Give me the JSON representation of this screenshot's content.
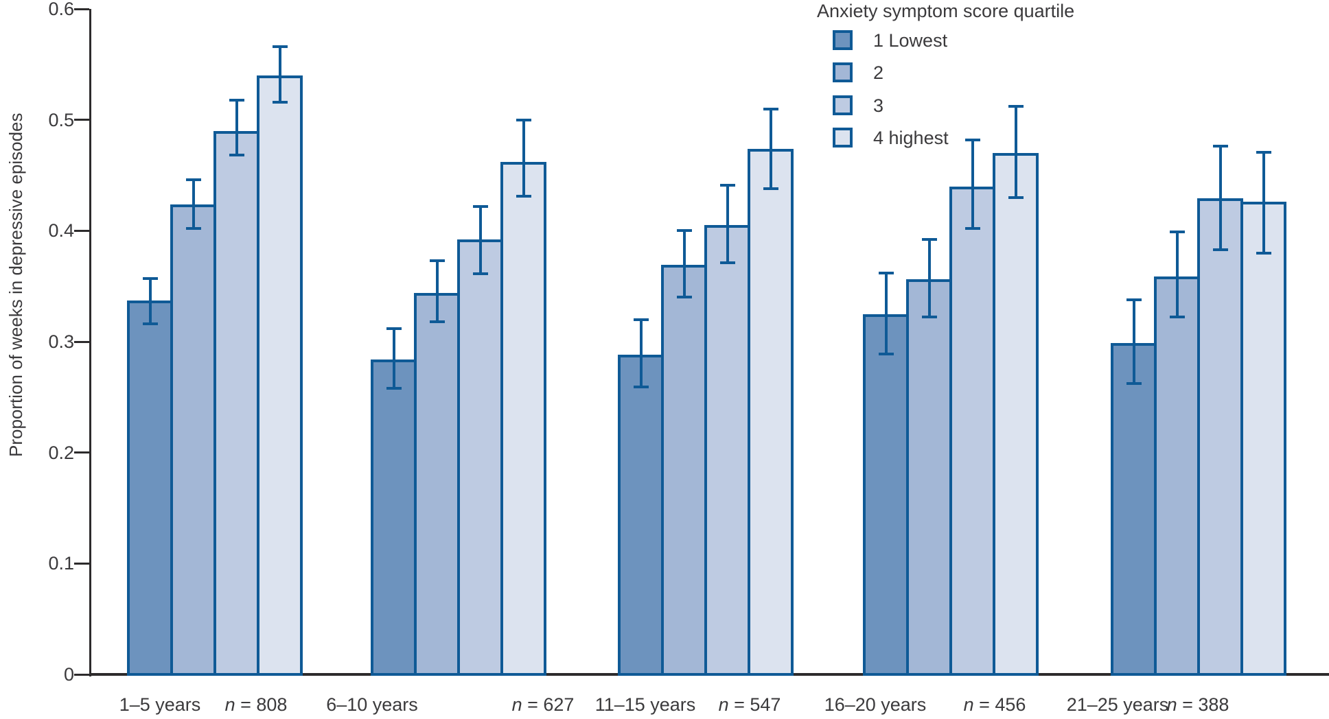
{
  "chart_data": {
    "type": "bar",
    "title": "",
    "xlabel": "",
    "ylabel": "Proportion of weeks in depressive episodes",
    "ylim": [
      0,
      0.6
    ],
    "ytick_labels": [
      "0",
      "0.1",
      "0.2",
      "0.3",
      "0.4",
      "0.5",
      "0.6"
    ],
    "ytick_values": [
      0,
      0.1,
      0.2,
      0.3,
      0.4,
      0.5,
      0.6
    ],
    "grid": false,
    "categories": [
      "1–5 years",
      "6–10 years",
      "11–15 years",
      "16–20 years",
      "21–25 years"
    ],
    "n_symbol": "n",
    "n_values": [
      "808",
      "627",
      "547",
      "456",
      "388"
    ],
    "legend": {
      "title": "Anxiety symptom score quartile",
      "position": "top-right",
      "entries": [
        {
          "label": "1 Lowest",
          "color": "#6d93be"
        },
        {
          "label": "2",
          "color": "#a3b7d6"
        },
        {
          "label": "3",
          "color": "#becbe2"
        },
        {
          "label": "4 highest",
          "color": "#dce3ef"
        }
      ]
    },
    "series": [
      {
        "name": "1 Lowest",
        "color": "#6d93be",
        "values": [
          0.337,
          0.284,
          0.288,
          0.325,
          0.299
        ],
        "ci_low": [
          0.316,
          0.258,
          0.259,
          0.289,
          0.262
        ],
        "ci_high": [
          0.357,
          0.312,
          0.32,
          0.362,
          0.338
        ]
      },
      {
        "name": "2",
        "color": "#a3b7d6",
        "values": [
          0.424,
          0.344,
          0.369,
          0.356,
          0.359
        ],
        "ci_low": [
          0.402,
          0.318,
          0.34,
          0.322,
          0.322
        ],
        "ci_high": [
          0.446,
          0.373,
          0.4,
          0.392,
          0.399
        ]
      },
      {
        "name": "3",
        "color": "#becbe2",
        "values": [
          0.49,
          0.392,
          0.405,
          0.44,
          0.429
        ],
        "ci_low": [
          0.468,
          0.361,
          0.371,
          0.402,
          0.383
        ],
        "ci_high": [
          0.518,
          0.422,
          0.441,
          0.482,
          0.476
        ]
      },
      {
        "name": "4 highest",
        "color": "#dce3ef",
        "values": [
          0.54,
          0.462,
          0.474,
          0.47,
          0.426
        ],
        "ci_low": [
          0.516,
          0.431,
          0.438,
          0.43,
          0.38
        ],
        "ci_high": [
          0.566,
          0.5,
          0.51,
          0.512,
          0.471
        ]
      }
    ],
    "bar_outline_color": "#0f5a96",
    "error_bar_color": "#0f5a96",
    "axis_color": "#2d2b2c",
    "text_color": "#3b3a3c"
  }
}
